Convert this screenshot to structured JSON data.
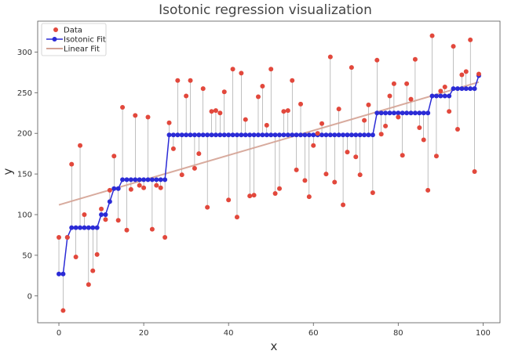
{
  "chart_data": {
    "type": "scatter",
    "title": "Isotonic regression visualization",
    "xlabel": "x",
    "ylabel": "y",
    "xlim": [
      -5,
      104
    ],
    "ylim": [
      -33,
      338
    ],
    "xticks": [
      0,
      20,
      40,
      60,
      80,
      100
    ],
    "yticks": [
      0,
      50,
      100,
      150,
      200,
      250,
      300
    ],
    "grid": false,
    "legend_position": "top-left",
    "series": [
      {
        "name": "Data",
        "kind": "points",
        "color": "#e2483c",
        "x": [
          0,
          1,
          2,
          3,
          4,
          5,
          6,
          7,
          8,
          9,
          10,
          11,
          12,
          13,
          14,
          15,
          16,
          17,
          18,
          19,
          20,
          21,
          22,
          23,
          24,
          25,
          26,
          27,
          28,
          29,
          30,
          31,
          32,
          33,
          34,
          35,
          36,
          37,
          38,
          39,
          40,
          41,
          42,
          43,
          44,
          45,
          46,
          47,
          48,
          49,
          50,
          51,
          52,
          53,
          54,
          55,
          56,
          57,
          58,
          59,
          60,
          61,
          62,
          63,
          64,
          65,
          66,
          67,
          68,
          69,
          70,
          71,
          72,
          73,
          74,
          75,
          76,
          77,
          78,
          79,
          80,
          81,
          82,
          83,
          84,
          85,
          86,
          87,
          88,
          89,
          90,
          91,
          92,
          93,
          94,
          95,
          96,
          97,
          98,
          99
        ],
        "y": [
          72,
          -18,
          72,
          162,
          48,
          185,
          100,
          14,
          31,
          51,
          107,
          94,
          130,
          172,
          93,
          232,
          81,
          131,
          222,
          136,
          133,
          220,
          82,
          136,
          133,
          72,
          213,
          181,
          265,
          149,
          246,
          265,
          157,
          175,
          255,
          109,
          227,
          228,
          225,
          251,
          118,
          279,
          97,
          274,
          217,
          123,
          124,
          245,
          258,
          210,
          279,
          126,
          132,
          227,
          228,
          265,
          155,
          236,
          142,
          122,
          185,
          200,
          212,
          150,
          294,
          140,
          230,
          112,
          177,
          281,
          171,
          149,
          216,
          235,
          127,
          290,
          199,
          209,
          246,
          261,
          220,
          173,
          261,
          242,
          291,
          207,
          192,
          130,
          320,
          172,
          252,
          257,
          227,
          307,
          205,
          272,
          276,
          315,
          153,
          273
        ]
      },
      {
        "name": "Isotonic Fit",
        "kind": "line-markers",
        "color": "#2b2bd6",
        "y": [
          27,
          27,
          72,
          84,
          84,
          84,
          84,
          84,
          84,
          84,
          100,
          100,
          116,
          132,
          132,
          143,
          143,
          143,
          143,
          143,
          143,
          143,
          143,
          143,
          143,
          143,
          198,
          198,
          198,
          198,
          198,
          198,
          198,
          198,
          198,
          198,
          198,
          198,
          198,
          198,
          198,
          198,
          198,
          198,
          198,
          198,
          198,
          198,
          198,
          198,
          198,
          198,
          198,
          198,
          198,
          198,
          198,
          198,
          198,
          198,
          198,
          198,
          198,
          198,
          198,
          198,
          198,
          198,
          198,
          198,
          198,
          198,
          198,
          198,
          198,
          225,
          225,
          225,
          225,
          225,
          225,
          225,
          225,
          225,
          225,
          225,
          225,
          225,
          246,
          246,
          246,
          246,
          246,
          255,
          255,
          255,
          255,
          255,
          255,
          271
        ]
      },
      {
        "name": "Linear Fit",
        "kind": "line",
        "color": "#d4a294",
        "x": [
          0,
          99
        ],
        "y": [
          112,
          263
        ]
      }
    ]
  }
}
